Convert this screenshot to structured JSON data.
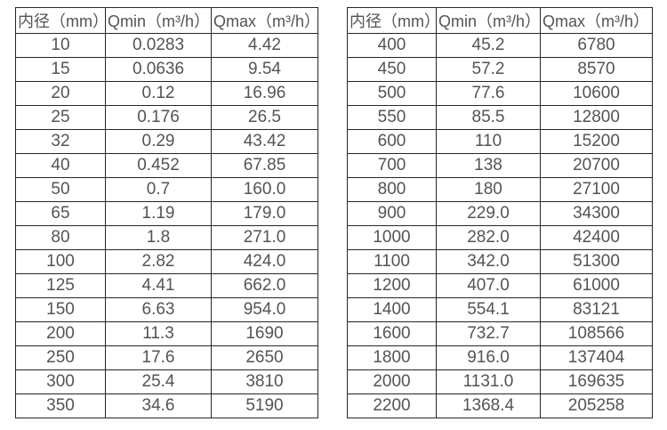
{
  "colors": {
    "background": "#ffffff",
    "border": "#262626",
    "text": "#545454"
  },
  "chart_data": [
    {
      "type": "table",
      "title": "",
      "headers": [
        "内径（mm）",
        "Qmin（m³/h）",
        "Qmax（m³/h）"
      ],
      "rows": [
        [
          "10",
          "0.0283",
          "4.42"
        ],
        [
          "15",
          "0.0636",
          "9.54"
        ],
        [
          "20",
          "0.12",
          "16.96"
        ],
        [
          "25",
          "0.176",
          "26.5"
        ],
        [
          "32",
          "0.29",
          "43.42"
        ],
        [
          "40",
          "0.452",
          "67.85"
        ],
        [
          "50",
          "0.7",
          "160.0"
        ],
        [
          "65",
          "1.19",
          "179.0"
        ],
        [
          "80",
          "1.8",
          "271.0"
        ],
        [
          "100",
          "2.82",
          "424.0"
        ],
        [
          "125",
          "4.41",
          "662.0"
        ],
        [
          "150",
          "6.63",
          "954.0"
        ],
        [
          "200",
          "11.3",
          "1690"
        ],
        [
          "250",
          "17.6",
          "2650"
        ],
        [
          "300",
          "25.4",
          "3810"
        ],
        [
          "350",
          "34.6",
          "5190"
        ]
      ]
    },
    {
      "type": "table",
      "title": "",
      "headers": [
        "内径（mm）",
        "Qmin（m³/h）",
        "Qmax（m³/h）"
      ],
      "rows": [
        [
          "400",
          "45.2",
          "6780"
        ],
        [
          "450",
          "57.2",
          "8570"
        ],
        [
          "500",
          "77.6",
          "10600"
        ],
        [
          "550",
          "85.5",
          "12800"
        ],
        [
          "600",
          "110",
          "15200"
        ],
        [
          "700",
          "138",
          "20700"
        ],
        [
          "800",
          "180",
          "27100"
        ],
        [
          "900",
          "229.0",
          "34300"
        ],
        [
          "1000",
          "282.0",
          "42400"
        ],
        [
          "1100",
          "342.0",
          "51300"
        ],
        [
          "1200",
          "407.0",
          "61000"
        ],
        [
          "1400",
          "554.1",
          "83121"
        ],
        [
          "1600",
          "732.7",
          "108566"
        ],
        [
          "1800",
          "916.0",
          "137404"
        ],
        [
          "2000",
          "1131.0",
          "169635"
        ],
        [
          "2200",
          "1368.4",
          "205258"
        ]
      ]
    }
  ]
}
